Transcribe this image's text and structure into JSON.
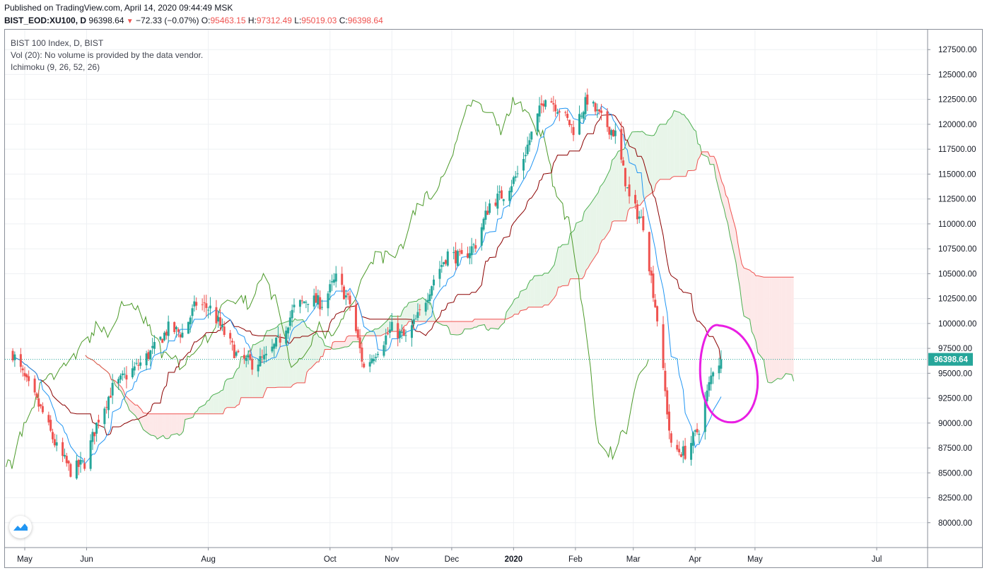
{
  "header": {
    "published": "Published on TradingView.com, April 14, 2020 09:44:49 MSK",
    "symbol": "BIST_EOD:XU100, D",
    "last": "96398.64",
    "change": "−72.33 (−0.07%)",
    "open_label": "O:",
    "open": "95463.15",
    "high_label": "H:",
    "high": "97312.49",
    "low_label": "L:",
    "low": "95019.03",
    "close_label": "C:",
    "close": "96398.64"
  },
  "legend": {
    "title": "BIST 100 Index, D, BIST",
    "volume": "Vol (20): No volume is provided by the data vendor.",
    "ichimoku": "Ichimoku (9, 26, 52, 26)"
  },
  "colors": {
    "up": "#26a69a",
    "down": "#ef5350",
    "tenkan": "#2196f3",
    "kijun": "#8b0000",
    "chikou": "#4c9a2a",
    "span_a": "#4caf50",
    "span_b": "#ef5350",
    "cloud_bull": "#e8f5e9",
    "cloud_bear": "#fde8e8",
    "annotation": "#e91ee3",
    "price_tag": "#26a69a"
  },
  "chart_data": {
    "type": "candlestick",
    "title": "BIST 100 Index, D, BIST",
    "y_axis": {
      "min": 77500,
      "max": 129500,
      "ticks": [
        "127500.00",
        "125000.00",
        "122500.00",
        "120000.00",
        "117500.00",
        "115000.00",
        "112500.00",
        "110000.00",
        "107500.00",
        "105000.00",
        "102500.00",
        "100000.00",
        "97500.00",
        "95000.00",
        "92500.00",
        "90000.00",
        "87500.00",
        "85000.00",
        "82500.00",
        "80000.00"
      ]
    },
    "x_axis": {
      "ticks": [
        {
          "label": "May",
          "date": "2019-05-01"
        },
        {
          "label": "Jun",
          "date": "2019-06-01"
        },
        {
          "label": "Aug",
          "date": "2019-08-01"
        },
        {
          "label": "Oct",
          "date": "2019-10-01"
        },
        {
          "label": "Nov",
          "date": "2019-11-01"
        },
        {
          "label": "Dec",
          "date": "2019-12-01"
        },
        {
          "label": "2020",
          "date": "2020-01-01",
          "bold": true
        },
        {
          "label": "Feb",
          "date": "2020-02-01"
        },
        {
          "label": "Mar",
          "date": "2020-03-01"
        },
        {
          "label": "Apr",
          "date": "2020-04-01"
        },
        {
          "label": "May",
          "date": "2020-05-01"
        },
        {
          "label": "Jul",
          "date": "2020-07-01"
        }
      ]
    },
    "last_price": 96398.64,
    "last_price_label": "96398.64",
    "ohlc_last": {
      "open": 95463.15,
      "high": 97312.49,
      "low": 95019.03,
      "close": 96398.64
    },
    "closes": [
      {
        "date": "2019-04-25",
        "close": 97000
      },
      {
        "date": "2019-05-02",
        "close": 94000
      },
      {
        "date": "2019-05-10",
        "close": 91000
      },
      {
        "date": "2019-05-17",
        "close": 87500
      },
      {
        "date": "2019-05-24",
        "close": 85200
      },
      {
        "date": "2019-05-31",
        "close": 86000
      },
      {
        "date": "2019-06-07",
        "close": 90500
      },
      {
        "date": "2019-06-14",
        "close": 93500
      },
      {
        "date": "2019-06-21",
        "close": 94800
      },
      {
        "date": "2019-06-28",
        "close": 96000
      },
      {
        "date": "2019-07-05",
        "close": 97500
      },
      {
        "date": "2019-07-12",
        "close": 99500
      },
      {
        "date": "2019-07-19",
        "close": 99000
      },
      {
        "date": "2019-07-26",
        "close": 102000
      },
      {
        "date": "2019-08-02",
        "close": 101500
      },
      {
        "date": "2019-08-09",
        "close": 99000
      },
      {
        "date": "2019-08-16",
        "close": 96500
      },
      {
        "date": "2019-08-23",
        "close": 96000
      },
      {
        "date": "2019-08-30",
        "close": 96500
      },
      {
        "date": "2019-09-06",
        "close": 98500
      },
      {
        "date": "2019-09-13",
        "close": 101500
      },
      {
        "date": "2019-09-20",
        "close": 102500
      },
      {
        "date": "2019-09-27",
        "close": 102000
      },
      {
        "date": "2019-10-04",
        "close": 104500
      },
      {
        "date": "2019-10-11",
        "close": 102000
      },
      {
        "date": "2019-10-18",
        "close": 95500
      },
      {
        "date": "2019-10-25",
        "close": 97500
      },
      {
        "date": "2019-11-01",
        "close": 99500
      },
      {
        "date": "2019-11-08",
        "close": 98500
      },
      {
        "date": "2019-11-15",
        "close": 101000
      },
      {
        "date": "2019-11-22",
        "close": 104500
      },
      {
        "date": "2019-11-29",
        "close": 107000
      },
      {
        "date": "2019-12-06",
        "close": 106500
      },
      {
        "date": "2019-12-13",
        "close": 108000
      },
      {
        "date": "2019-12-20",
        "close": 112000
      },
      {
        "date": "2019-12-27",
        "close": 113000
      },
      {
        "date": "2020-01-03",
        "close": 115000
      },
      {
        "date": "2020-01-10",
        "close": 119000
      },
      {
        "date": "2020-01-17",
        "close": 123000
      },
      {
        "date": "2020-01-24",
        "close": 121500
      },
      {
        "date": "2020-01-31",
        "close": 119500
      },
      {
        "date": "2020-02-07",
        "close": 122500
      },
      {
        "date": "2020-02-14",
        "close": 120500
      },
      {
        "date": "2020-02-21",
        "close": 119000
      },
      {
        "date": "2020-02-28",
        "close": 112500
      },
      {
        "date": "2020-03-06",
        "close": 110000
      },
      {
        "date": "2020-03-13",
        "close": 100500
      },
      {
        "date": "2020-03-20",
        "close": 87500
      },
      {
        "date": "2020-03-27",
        "close": 87000
      },
      {
        "date": "2020-04-03",
        "close": 89500
      },
      {
        "date": "2020-04-10",
        "close": 95500
      },
      {
        "date": "2020-04-14",
        "close": 96398.64
      }
    ],
    "annotation": {
      "type": "ellipse",
      "color": "#e91ee3",
      "around": "latest candles, April 2020"
    }
  }
}
